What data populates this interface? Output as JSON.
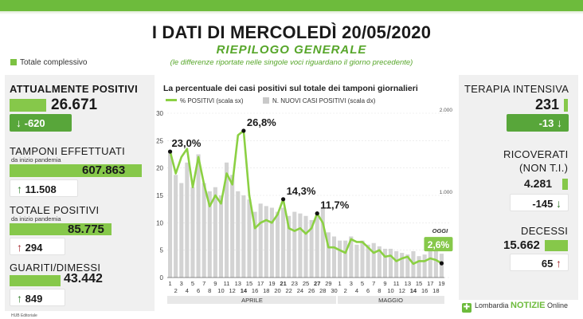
{
  "header": {
    "title": "I DATI DI MERCOLEDÌ 20/05/2020",
    "subtitle": "RIEPILOGO GENERALE",
    "note": "(le differenze riportate nelle singole voci riguardano il giorno precedente)",
    "legend_total": "Totale complessivo"
  },
  "left": {
    "positivi": {
      "label": "ATTUALMENTE POSITIVI",
      "value": "26.671",
      "delta": "-620"
    },
    "tamponi": {
      "label": "TAMPONI EFFETTUATI",
      "sub": "da inizio pandemia",
      "value": "607.863",
      "delta": "11.508"
    },
    "totale": {
      "label": "TOTALE POSITIVI",
      "sub": "da inizio pandemia",
      "value": "85.775",
      "delta": "294"
    },
    "guariti": {
      "label": "GUARITI/DIMESSI",
      "value": "43.442",
      "delta": "849"
    },
    "footer": "HUB Editoriale"
  },
  "right": {
    "terapia": {
      "label": "TERAPIA INTENSIVA",
      "value": "231",
      "delta": "-13"
    },
    "ricoverati": {
      "label1": "RICOVERATI",
      "label2": "(NON T.I.)",
      "value": "4.281",
      "delta": "-145"
    },
    "decessi": {
      "label": "DECESSI",
      "value": "15.662",
      "delta": "65"
    },
    "brand_pre": "Lombardia",
    "brand_main": "NOTIZIE",
    "brand_post": "Online"
  },
  "icons": {
    "up": "arrow-up-icon",
    "down": "arrow-down-icon",
    "logo": "lombardia-notizie-logo-icon"
  },
  "colors": {
    "green": "#7cc242",
    "dark_green": "#58a63a",
    "line": "#8bd043",
    "bars": "#cfcfcf",
    "red": "#a3232a"
  },
  "chart_data": {
    "type": "bar+line",
    "title": "La percentuale dei casi positivi sul totale dei tamponi giornalieri",
    "legend": [
      "% POSITIVI (scala sx)",
      "N. NUOVI CASI POSITIVI (scala dx)"
    ],
    "x_top": [
      "1",
      "3",
      "5",
      "7",
      "9",
      "11",
      "13",
      "15",
      "17",
      "19",
      "21",
      "23",
      "25",
      "27",
      "29",
      "1",
      "3",
      "5",
      "7",
      "9",
      "11",
      "13",
      "15",
      "17",
      "19"
    ],
    "x_bottom": [
      "2",
      "4",
      "6",
      "8",
      "10",
      "12",
      "14",
      "16",
      "18",
      "20",
      "22",
      "24",
      "26",
      "28",
      "30",
      "2",
      "4",
      "6",
      "8",
      "10",
      "12",
      "14",
      "16",
      "18",
      "20"
    ],
    "bold_days": [
      "14",
      "21",
      "27",
      "20"
    ],
    "months": [
      "APRILE",
      "MAGGIO"
    ],
    "y_left": {
      "ticks": [
        "0",
        "5",
        "10",
        "15",
        "20",
        "25",
        "30"
      ],
      "range": [
        0,
        30
      ]
    },
    "y_right": {
      "ticks": [
        "1.000",
        "2.000"
      ],
      "range": [
        0,
        2000
      ]
    },
    "percent_positive": [
      23.0,
      19,
      22,
      23.5,
      16.5,
      22,
      17,
      13,
      15,
      13.5,
      19,
      17,
      26,
      26.8,
      15,
      9,
      10,
      10.5,
      10,
      11.5,
      14.3,
      9,
      8.5,
      9,
      8,
      9,
      11.7,
      10,
      5.5,
      5.5,
      5,
      4.5,
      7,
      6.5,
      6.5,
      5.5,
      4.5,
      5,
      3.8,
      4,
      3,
      3.5,
      3.8,
      2.5,
      3,
      3,
      3.5,
      3.2,
      2.6
    ],
    "new_cases": [
      1550,
      1250,
      1150,
      1400,
      1100,
      1500,
      1150,
      1050,
      1100,
      1000,
      1400,
      1250,
      1050,
      1000,
      950,
      800,
      900,
      870,
      850,
      800,
      850,
      750,
      800,
      780,
      750,
      700,
      800,
      850,
      550,
      500,
      450,
      450,
      500,
      400,
      450,
      400,
      420,
      380,
      350,
      350,
      320,
      300,
      280,
      320,
      260,
      280,
      350,
      330,
      290
    ],
    "annotations": [
      {
        "index": 0,
        "label": "23,0%"
      },
      {
        "index": 13,
        "label": "26,8%"
      },
      {
        "index": 20,
        "label": "14,3%"
      },
      {
        "index": 26,
        "label": "11,7%"
      },
      {
        "index": 48,
        "label": "2,6%",
        "tag": "OGGI"
      }
    ]
  }
}
